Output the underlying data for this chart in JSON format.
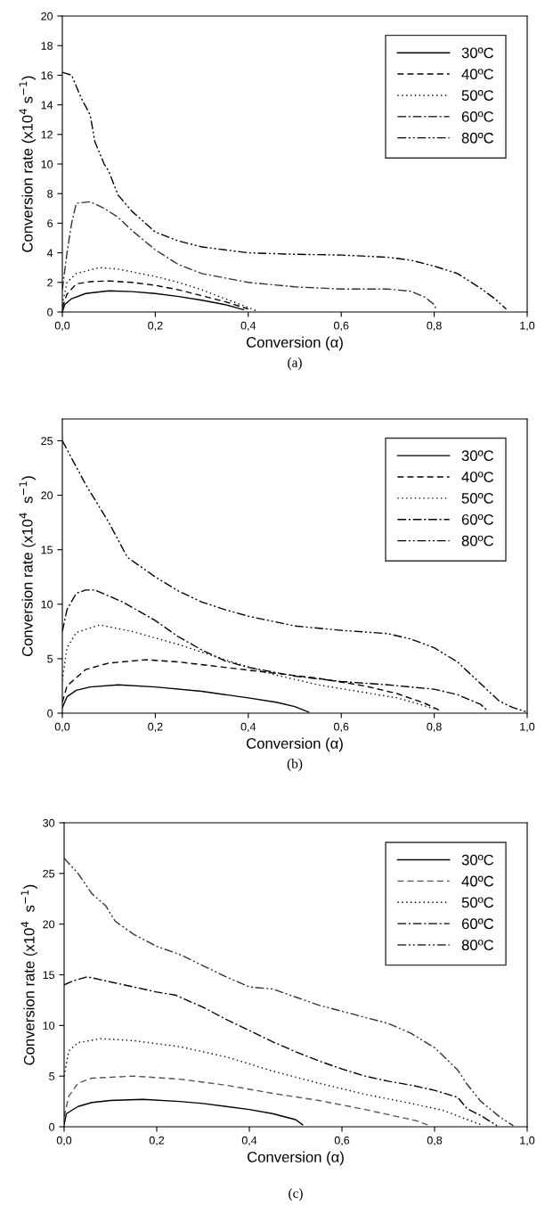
{
  "chart_data": [
    {
      "type": "line",
      "xlabel": "Conversion (α)",
      "ylabel": "Conversion rate (x10$^{4}$ s$^{−1}$)",
      "annotations": [
        "(a)"
      ],
      "xlim": [
        0,
        1
      ],
      "ylim": [
        0,
        20
      ],
      "xticks": [
        {
          "value": 0,
          "label": "0,0"
        },
        {
          "value": 0.2,
          "label": "0,2"
        },
        {
          "value": 0.4,
          "label": "0,4"
        },
        {
          "value": 0.6,
          "label": "0,6"
        },
        {
          "value": 0.8,
          "label": "0,8"
        },
        {
          "value": 1,
          "label": "1,0"
        }
      ],
      "yticks": [
        0,
        2,
        4,
        6,
        8,
        10,
        12,
        14,
        16,
        18,
        20
      ],
      "legend": "top right",
      "grid": false,
      "series": [
        {
          "name": "30ºC",
          "color": "#000000",
          "line_style": "solid",
          "x": [
            0,
            0.005,
            0.02,
            0.05,
            0.1,
            0.15,
            0.2,
            0.25,
            0.3,
            0.35,
            0.39
          ],
          "values": [
            0,
            0.5,
            0.9,
            1.25,
            1.43,
            1.38,
            1.25,
            1.05,
            0.8,
            0.5,
            0.15
          ]
        },
        {
          "name": "40ºC",
          "color": "#000000",
          "line_style": "dashed",
          "x": [
            0,
            0.01,
            0.03,
            0.06,
            0.1,
            0.15,
            0.2,
            0.25,
            0.3,
            0.35,
            0.4
          ],
          "values": [
            0.3,
            1.2,
            1.9,
            2.05,
            2.1,
            2.0,
            1.8,
            1.5,
            1.1,
            0.7,
            0.2
          ]
        },
        {
          "name": "50ºC",
          "color": "#000000",
          "line_style": "dotted",
          "x": [
            0,
            0.01,
            0.03,
            0.08,
            0.12,
            0.2,
            0.25,
            0.3,
            0.35,
            0.4,
            0.42
          ],
          "values": [
            0.5,
            2.0,
            2.6,
            3.0,
            2.9,
            2.4,
            2.0,
            1.5,
            0.9,
            0.3,
            0.05
          ]
        },
        {
          "name": "60ºC",
          "color": "#333333",
          "line_style": "dashdot",
          "x": [
            0,
            0.01,
            0.02,
            0.03,
            0.06,
            0.09,
            0.12,
            0.15,
            0.2,
            0.25,
            0.3,
            0.35,
            0.4,
            0.5,
            0.6,
            0.7,
            0.75,
            0.78,
            0.8,
            0.805
          ],
          "values": [
            1.5,
            4,
            6,
            7.35,
            7.45,
            7.0,
            6.4,
            5.5,
            4.2,
            3.2,
            2.6,
            2.3,
            2.0,
            1.7,
            1.55,
            1.55,
            1.4,
            1.0,
            0.5,
            0.1
          ]
        },
        {
          "name": "80ºC",
          "color": "#000000",
          "line_style": "dashdotdot",
          "x": [
            0,
            0.02,
            0.04,
            0.06,
            0.07,
            0.09,
            0.1,
            0.12,
            0.15,
            0.2,
            0.25,
            0.3,
            0.35,
            0.4,
            0.5,
            0.6,
            0.7,
            0.75,
            0.8,
            0.85,
            0.9,
            0.93,
            0.955
          ],
          "values": [
            16.2,
            16.0,
            14.5,
            13.3,
            11.5,
            10.0,
            9.5,
            7.9,
            6.8,
            5.4,
            4.8,
            4.4,
            4.2,
            4.0,
            3.9,
            3.85,
            3.7,
            3.5,
            3.1,
            2.6,
            1.6,
            0.9,
            0.2
          ]
        }
      ]
    },
    {
      "type": "line",
      "xlabel": "Conversion (α)",
      "ylabel": "Conversion rate (x10$^{4}$  s$^{−1}$)",
      "annotations": [
        "(b)"
      ],
      "xlim": [
        0,
        1
      ],
      "ylim": [
        0,
        27
      ],
      "xticks": [
        {
          "value": 0,
          "label": "0,0"
        },
        {
          "value": 0.2,
          "label": "0,2"
        },
        {
          "value": 0.4,
          "label": "0,4"
        },
        {
          "value": 0.6,
          "label": "0,6"
        },
        {
          "value": 0.8,
          "label": "0,8"
        },
        {
          "value": 1,
          "label": "1,0"
        }
      ],
      "yticks": [
        0,
        5,
        10,
        15,
        20,
        25
      ],
      "legend": "top right",
      "grid": false,
      "series": [
        {
          "name": "30ºC",
          "color": "#000000",
          "line_style": "solid",
          "x": [
            0,
            0.01,
            0.03,
            0.06,
            0.12,
            0.2,
            0.3,
            0.4,
            0.46,
            0.5,
            0.53
          ],
          "values": [
            0.5,
            1.5,
            2.1,
            2.4,
            2.6,
            2.4,
            2.0,
            1.4,
            1.0,
            0.6,
            0.1
          ]
        },
        {
          "name": "40ºC",
          "color": "#000000",
          "line_style": "dashed",
          "x": [
            0,
            0.01,
            0.05,
            0.1,
            0.18,
            0.25,
            0.35,
            0.45,
            0.55,
            0.65,
            0.72,
            0.78,
            0.81
          ],
          "values": [
            1,
            2.5,
            4.0,
            4.6,
            4.9,
            4.7,
            4.2,
            3.7,
            3.2,
            2.5,
            1.8,
            0.9,
            0.3
          ]
        },
        {
          "name": "50ºC",
          "color": "#000000",
          "line_style": "dotted",
          "x": [
            0,
            0.01,
            0.03,
            0.08,
            0.15,
            0.25,
            0.35,
            0.45,
            0.55,
            0.65,
            0.72,
            0.77,
            0.8
          ],
          "values": [
            3,
            6,
            7.4,
            8.1,
            7.5,
            6.3,
            4.9,
            3.6,
            2.6,
            1.9,
            1.4,
            0.8,
            0.4
          ]
        },
        {
          "name": "60ºC",
          "color": "#000000",
          "line_style": "dashdot",
          "x": [
            0,
            0.01,
            0.03,
            0.05,
            0.07,
            0.13,
            0.2,
            0.25,
            0.3,
            0.35,
            0.4,
            0.5,
            0.6,
            0.7,
            0.8,
            0.85,
            0.9,
            0.915
          ],
          "values": [
            7.5,
            9.5,
            11.0,
            11.3,
            11.3,
            10.2,
            8.5,
            7.0,
            5.8,
            4.8,
            4.2,
            3.4,
            2.9,
            2.6,
            2.2,
            1.7,
            0.8,
            0.2
          ]
        },
        {
          "name": "80ºC",
          "color": "#000000",
          "line_style": "dashdotdot",
          "x": [
            0,
            0.05,
            0.1,
            0.14,
            0.2,
            0.25,
            0.3,
            0.35,
            0.4,
            0.5,
            0.6,
            0.7,
            0.75,
            0.8,
            0.85,
            0.9,
            0.94,
            0.97,
            1.0
          ],
          "values": [
            25,
            21,
            17.5,
            14.3,
            12.5,
            11.2,
            10.2,
            9.5,
            8.9,
            8.0,
            7.6,
            7.3,
            6.8,
            6.0,
            4.7,
            2.7,
            1.1,
            0.5,
            0.1
          ]
        }
      ]
    },
    {
      "type": "line",
      "xlabel": "Conversion (α)",
      "ylabel": "Conversion rate (x10$^{4}$  s$^{−1}$)",
      "annotations": [
        "(c)"
      ],
      "xlim": [
        0,
        1
      ],
      "ylim": [
        0,
        30
      ],
      "xticks": [
        {
          "value": 0,
          "label": "0,0"
        },
        {
          "value": 0.2,
          "label": "0,2"
        },
        {
          "value": 0.4,
          "label": "0,4"
        },
        {
          "value": 0.6,
          "label": "0,6"
        },
        {
          "value": 0.8,
          "label": "0,8"
        },
        {
          "value": 1,
          "label": "1,0"
        }
      ],
      "yticks": [
        0,
        5,
        10,
        15,
        20,
        25,
        30
      ],
      "legend": "top right",
      "grid": false,
      "series": [
        {
          "name": "30ºC",
          "color": "#000000",
          "line_style": "solid",
          "x": [
            0,
            0.005,
            0.03,
            0.06,
            0.1,
            0.17,
            0.25,
            0.3,
            0.35,
            0.4,
            0.45,
            0.5,
            0.515
          ],
          "values": [
            0.2,
            1.3,
            2.0,
            2.4,
            2.6,
            2.7,
            2.5,
            2.3,
            2.0,
            1.7,
            1.3,
            0.7,
            0.2
          ]
        },
        {
          "name": "40ºC",
          "color": "#555555",
          "line_style": "dashed",
          "x": [
            0,
            0.01,
            0.03,
            0.06,
            0.15,
            0.25,
            0.35,
            0.45,
            0.55,
            0.65,
            0.72,
            0.76,
            0.79
          ],
          "values": [
            1,
            3.0,
            4.3,
            4.8,
            5.0,
            4.7,
            4.1,
            3.3,
            2.6,
            1.7,
            1.0,
            0.6,
            0.1
          ]
        },
        {
          "name": "50ºC",
          "color": "#000000",
          "line_style": "dotted",
          "x": [
            0,
            0.01,
            0.03,
            0.08,
            0.15,
            0.25,
            0.35,
            0.45,
            0.55,
            0.65,
            0.75,
            0.82,
            0.86,
            0.9
          ],
          "values": [
            5.0,
            7.5,
            8.3,
            8.7,
            8.5,
            7.9,
            6.9,
            5.5,
            4.3,
            3.2,
            2.3,
            1.6,
            0.9,
            0.2
          ]
        },
        {
          "name": "60ºC",
          "color": "#000000",
          "line_style": "dashdot",
          "x": [
            0,
            0.02,
            0.05,
            0.1,
            0.15,
            0.2,
            0.24,
            0.3,
            0.35,
            0.4,
            0.45,
            0.5,
            0.55,
            0.6,
            0.65,
            0.7,
            0.75,
            0.8,
            0.85,
            0.87,
            0.9,
            0.935
          ],
          "values": [
            14.0,
            14.4,
            14.8,
            14.3,
            13.8,
            13.3,
            13.0,
            11.8,
            10.6,
            9.5,
            8.4,
            7.4,
            6.5,
            5.7,
            5.0,
            4.5,
            4.1,
            3.6,
            2.9,
            1.8,
            1.1,
            0.1
          ]
        },
        {
          "name": "80ºC",
          "color": "#333333",
          "line_style": "dashdotdot",
          "x": [
            0,
            0.03,
            0.06,
            0.09,
            0.11,
            0.15,
            0.2,
            0.25,
            0.3,
            0.35,
            0.4,
            0.45,
            0.5,
            0.55,
            0.6,
            0.65,
            0.7,
            0.75,
            0.8,
            0.85,
            0.87,
            0.9,
            0.94,
            0.97
          ],
          "values": [
            26.5,
            25.0,
            23.0,
            21.8,
            20.3,
            19.0,
            17.8,
            17.0,
            15.9,
            14.8,
            13.8,
            13.6,
            12.8,
            12.0,
            11.4,
            10.8,
            10.2,
            9.2,
            7.8,
            5.6,
            4.2,
            2.5,
            1.0,
            0.1
          ]
        }
      ]
    }
  ]
}
